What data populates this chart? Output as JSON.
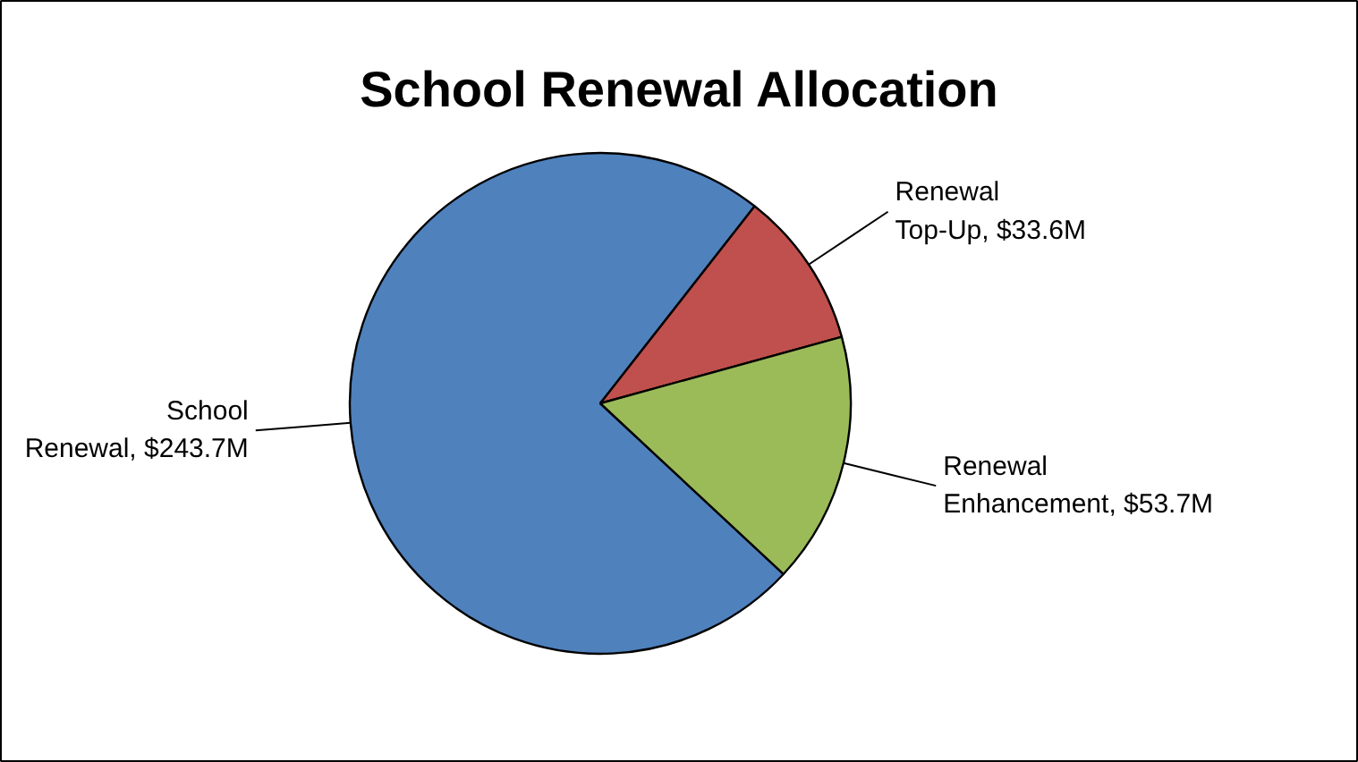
{
  "chart_data": {
    "type": "pie",
    "title": "School Renewal Allocation",
    "categories": [
      "School Renewal",
      "Renewal Top-Up",
      "Renewal Enhancement"
    ],
    "values": [
      243.7,
      33.6,
      53.7
    ],
    "colors": [
      "#4f81bd",
      "#c0504d",
      "#9bbb59"
    ],
    "value_labels": [
      "$243.7M",
      "$33.6M",
      "$53.7M"
    ]
  }
}
